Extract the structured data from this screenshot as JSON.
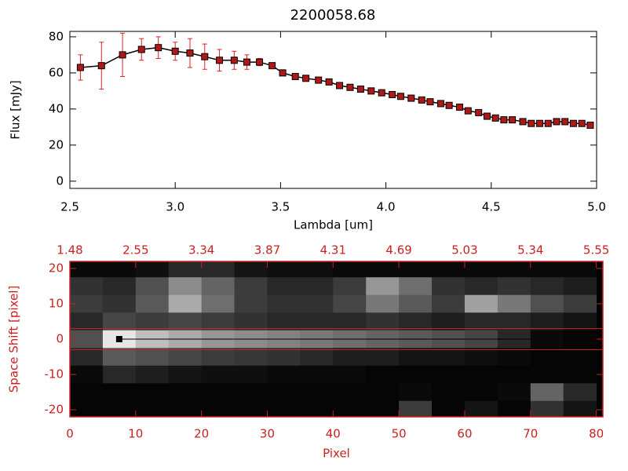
{
  "chart_data": [
    {
      "type": "line",
      "title": "2200058.68",
      "x_label": "Lambda [um]",
      "y_label": "Flux [mJy]",
      "x": [
        2.55,
        2.65,
        2.75,
        2.84,
        2.92,
        3.0,
        3.07,
        3.14,
        3.21,
        3.28,
        3.34,
        3.4,
        3.46,
        3.51,
        3.57,
        3.62,
        3.68,
        3.73,
        3.78,
        3.83,
        3.88,
        3.93,
        3.98,
        4.03,
        4.07,
        4.12,
        4.17,
        4.21,
        4.26,
        4.3,
        4.35,
        4.39,
        4.44,
        4.48,
        4.52,
        4.56,
        4.6,
        4.65,
        4.69,
        4.73,
        4.77,
        4.81,
        4.85,
        4.89,
        4.93,
        4.97
      ],
      "values": [
        63,
        64,
        70,
        73,
        74,
        72,
        71,
        69,
        67,
        67,
        66,
        66,
        64,
        60,
        58,
        57,
        56,
        55,
        53,
        52,
        51,
        50,
        49,
        48,
        47,
        46,
        45,
        44,
        43,
        42,
        41,
        39,
        38,
        36,
        35,
        34,
        34,
        33,
        32,
        32,
        32,
        33,
        33,
        32,
        32,
        31
      ],
      "errors": [
        7,
        13,
        12,
        6,
        6,
        5,
        8,
        7,
        6,
        5,
        4,
        2,
        1,
        1,
        1,
        1,
        1,
        1,
        1,
        1,
        1,
        1,
        1,
        1,
        1,
        1,
        1,
        1,
        1,
        1,
        1,
        1,
        1,
        1,
        1,
        1,
        1,
        1,
        1,
        1,
        1,
        1,
        1,
        1,
        1,
        1
      ],
      "color": "#000000",
      "marker_color": "#b01818",
      "error_color": "#dd2020",
      "xlim": [
        2.5,
        5.0
      ],
      "ylim": [
        -4,
        83
      ],
      "xticks": [
        2.5,
        {
          "value": 3,
          "label": "3.0"
        },
        3.5,
        {
          "value": 4,
          "label": "4.0"
        },
        4.5,
        {
          "value": 5,
          "label": "5.0"
        }
      ],
      "yticks": [
        0,
        20,
        40,
        60,
        80
      ]
    },
    {
      "type": "heatmap",
      "x_label": "Pixel",
      "y_label": "Space Shift [pixel]",
      "axis_color": "#cc2020",
      "x": [
        2.5,
        7.5,
        12.5,
        17.5,
        22.5,
        27.5,
        32.5,
        37.5,
        42.5,
        47.5,
        52.5,
        57.5,
        62.5,
        67.5,
        72.5,
        77.5
      ],
      "y": [
        20,
        15,
        10,
        5,
        0,
        -5,
        -10,
        -15,
        -20
      ],
      "z": [
        [
          10,
          10,
          15,
          40,
          40,
          20,
          15,
          15,
          10,
          10,
          10,
          10,
          10,
          10,
          10,
          10
        ],
        [
          50,
          40,
          80,
          140,
          100,
          60,
          40,
          40,
          60,
          150,
          110,
          50,
          40,
          50,
          40,
          30
        ],
        [
          60,
          50,
          90,
          170,
          110,
          60,
          50,
          50,
          70,
          120,
          90,
          60,
          160,
          120,
          80,
          60
        ],
        [
          40,
          70,
          60,
          70,
          60,
          50,
          40,
          40,
          40,
          50,
          40,
          30,
          40,
          40,
          30,
          20
        ],
        [
          80,
          230,
          190,
          170,
          150,
          140,
          130,
          120,
          110,
          100,
          90,
          80,
          70,
          40,
          10,
          5
        ],
        [
          40,
          90,
          80,
          70,
          60,
          55,
          50,
          40,
          30,
          30,
          20,
          20,
          15,
          10,
          5,
          5
        ],
        [
          10,
          40,
          30,
          20,
          15,
          15,
          10,
          10,
          10,
          5,
          5,
          5,
          5,
          5,
          5,
          5
        ],
        [
          5,
          5,
          5,
          5,
          5,
          5,
          5,
          5,
          5,
          5,
          10,
          5,
          5,
          10,
          100,
          40
        ],
        [
          5,
          5,
          5,
          5,
          5,
          5,
          5,
          5,
          5,
          5,
          60,
          5,
          20,
          5,
          50,
          20
        ]
      ],
      "marker": {
        "x": 7.5,
        "y": 0
      },
      "hlines": [
        3,
        -3
      ],
      "xlim": [
        0,
        81
      ],
      "ylim": [
        -22,
        22
      ],
      "xticks": [
        0,
        10,
        20,
        30,
        40,
        50,
        60,
        70,
        80
      ],
      "x2ticks": [
        {
          "value": 0,
          "label": "1.48"
        },
        {
          "value": 10,
          "label": "2.55"
        },
        {
          "value": 20,
          "label": "3.34"
        },
        {
          "value": 30,
          "label": "3.87"
        },
        {
          "value": 40,
          "label": "4.31"
        },
        {
          "value": 50,
          "label": "4.69"
        },
        {
          "value": 60,
          "label": "5.03"
        },
        {
          "value": 70,
          "label": "5.34"
        },
        {
          "value": 80,
          "label": "5.55"
        }
      ],
      "yticks": [
        -20,
        -10,
        0,
        10,
        20
      ]
    }
  ]
}
